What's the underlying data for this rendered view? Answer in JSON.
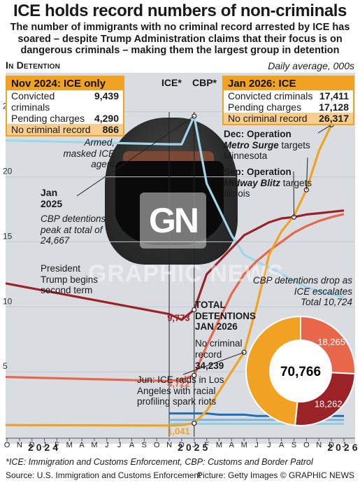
{
  "title": "ICE holds record numbers of non-criminals",
  "subtitle": "The number of immigrants with no criminal record arrested by ICE has soared – despite Trump Administration claims that their focus is on dangerous criminals – making them the largest group in detention",
  "section_label": "In Detention",
  "units_label": "Daily average, 000s",
  "box_nov2024": {
    "heading": "Nov 2024: ICE only",
    "rows": [
      {
        "label": "Convicted criminals",
        "value": "9,439"
      },
      {
        "label": "Pending charges",
        "value": "4,290"
      },
      {
        "label": "No criminal record",
        "value": "866"
      }
    ]
  },
  "box_jan2026": {
    "heading": "Jan 2026: ICE",
    "rows": [
      {
        "label": "Convicted criminals",
        "value": "17,411"
      },
      {
        "label": "Pending charges",
        "value": "17,128"
      },
      {
        "label": "No criminal record",
        "value": "26,317"
      }
    ]
  },
  "legend": {
    "ice": "ICE*",
    "cbp": "CBP*"
  },
  "colors": {
    "convicted": "#9b2226",
    "pending": "#e8664a",
    "no_record": "#f2a223",
    "cbp_convicted": "#1f6fb5",
    "cbp_pending": "#7fb0dc",
    "cbp_norecord": "#8fd0e0",
    "cbp_total": "#9fd6ea",
    "chart_bg": "#d9dde2"
  },
  "notes": {
    "photo_caption": "Armed, masked ICE agent",
    "jan2025_date": "Jan 2025",
    "jan2025_text": "CBP detentions peak at total of 24,667",
    "trump": "President Trump begins second term",
    "dec_lead": "Dec: Operation",
    "dec_op": "Metro Surge",
    "dec_tail": "targets Minnesota",
    "sep_lead": "Sep: Operation",
    "sep_op": "Midway Blitz",
    "sep_tail": "targets Illinois",
    "cbp_drop": "CBP detentions drop as ICE escalates",
    "cbp_total": "Total 10,724",
    "jun": "Jun: ICE raids in Los Angeles with racial profiling spark riots",
    "total_heading": "TOTAL DETENTIONS JAN 2026",
    "no_record_label": "No criminal record",
    "no_record_value": "34,239"
  },
  "watermark": {
    "logo": "GN",
    "text": "GRAPHIC NEWS"
  },
  "footnote": "*ICE: Immigration and Customs Enforcement, CBP: Customs and Border Patrol",
  "source": "Source: U.S. Immigration and Customs Enforcement",
  "credit": "Picture: Getty Images",
  "brand": "© GRAPHIC NEWS",
  "chart_data": {
    "type": "line",
    "ylim": [
      0,
      28
    ],
    "yticks": [
      5,
      10,
      15,
      20,
      25
    ],
    "x": [
      "2023-10",
      "2023-11",
      "2023-12",
      "2024-01",
      "2024-02",
      "2024-03",
      "2024-04",
      "2024-05",
      "2024-06",
      "2024-07",
      "2024-08",
      "2024-09",
      "2024-10",
      "2024-11",
      "2024-12",
      "2025-01",
      "2025-02",
      "2025-03",
      "2025-04",
      "2025-05",
      "2025-06",
      "2025-07",
      "2025-08",
      "2025-09",
      "2025-10",
      "2025-11",
      "2025-12",
      "2026-01"
    ],
    "month_labels": [
      "O",
      "N",
      "D",
      "J",
      "F",
      "M",
      "A",
      "M",
      "J",
      "J",
      "A",
      "S",
      "O",
      "N",
      "D",
      "J",
      "F",
      "M",
      "A",
      "M",
      "J",
      "J",
      "A",
      "S",
      "O",
      "N",
      "D",
      "J"
    ],
    "years": [
      {
        "label": "2024",
        "index": 3
      },
      {
        "label": "2025",
        "index": 15
      },
      {
        "label": "2026",
        "index": 27
      }
    ],
    "series": [
      {
        "name": "ICE convicted criminals",
        "color_key": "convicted",
        "values": [
          null,
          null,
          null,
          null,
          null,
          null,
          null,
          null,
          null,
          null,
          null,
          null,
          null,
          9.439,
          9.0,
          9.773,
          12.5,
          13.5,
          14.5,
          15.5,
          16.0,
          16.5,
          16.8,
          16.9,
          17.1,
          17.2,
          17.3,
          17.411
        ]
      },
      {
        "name": "ICE pending charges",
        "color_key": "pending",
        "values": [
          null,
          null,
          null,
          null,
          null,
          null,
          null,
          null,
          null,
          null,
          null,
          null,
          null,
          4.29,
          4.4,
          4.722,
          7.0,
          9.0,
          11.0,
          12.5,
          13.5,
          14.3,
          15.0,
          15.7,
          16.2,
          16.6,
          16.9,
          17.128
        ]
      },
      {
        "name": "ICE no criminal record",
        "color_key": "no_record",
        "values": [
          null,
          null,
          null,
          null,
          null,
          null,
          null,
          null,
          null,
          null,
          null,
          null,
          null,
          0.866,
          0.9,
          1.041,
          2.0,
          3.5,
          5.0,
          6.5,
          10.0,
          14.0,
          15.8,
          17.0,
          19.0,
          22.0,
          24.0,
          26.317
        ]
      },
      {
        "name": "CBP total",
        "color_key": "cbp_total",
        "values": [
          null,
          null,
          null,
          null,
          null,
          null,
          null,
          null,
          null,
          null,
          null,
          null,
          null,
          22.5,
          22.5,
          24.667,
          19.5,
          17.5,
          15.5,
          14.0,
          13.5,
          13.0,
          12.5,
          12.0,
          11.5,
          11.2,
          11.0,
          10.724
        ]
      },
      {
        "name": "CBP convicted",
        "color_key": "cbp_convicted",
        "values": [
          null,
          null,
          null,
          null,
          null,
          null,
          null,
          null,
          null,
          null,
          null,
          null,
          null,
          1.8,
          1.8,
          1.8,
          1.8,
          1.7,
          1.7,
          1.7,
          1.6,
          1.6,
          1.6,
          1.6,
          1.6,
          1.6,
          1.6,
          1.6
        ]
      },
      {
        "name": "CBP pending",
        "color_key": "cbp_pending",
        "values": [
          null,
          null,
          null,
          null,
          null,
          null,
          null,
          null,
          null,
          null,
          null,
          null,
          null,
          1.3,
          1.3,
          1.3,
          1.3,
          1.3,
          1.3,
          1.3,
          1.3,
          1.3,
          1.3,
          1.3,
          1.3,
          1.3,
          1.3,
          1.3
        ]
      },
      {
        "name": "CBP no record",
        "color_key": "cbp_norecord",
        "values": [
          null,
          null,
          null,
          null,
          null,
          null,
          null,
          null,
          null,
          null,
          null,
          null,
          null,
          1.0,
          1.0,
          1.0,
          1.0,
          1.0,
          1.0,
          1.0,
          1.0,
          1.0,
          1.0,
          1.0,
          1.0,
          1.0,
          1.0,
          1.0
        ]
      }
    ],
    "point_labels": [
      {
        "series": 0,
        "index": 15,
        "text": "9,773"
      },
      {
        "series": 1,
        "index": 15,
        "text": "4,722"
      },
      {
        "series": 2,
        "index": 15,
        "text": "1,041"
      }
    ],
    "donut": {
      "total": "70,766",
      "slices": [
        {
          "label": "18,265",
          "value": 18265,
          "color_key": "pending"
        },
        {
          "label": "18,262",
          "value": 18262,
          "color_key": "convicted"
        },
        {
          "label": "",
          "value": 34239,
          "color_key": "no_record"
        }
      ]
    }
  }
}
